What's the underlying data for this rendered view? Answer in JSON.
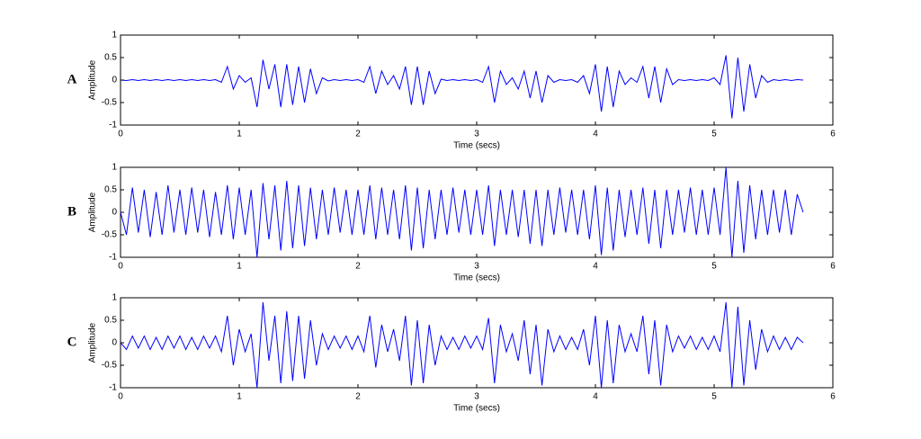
{
  "chart_data": [
    {
      "type": "line",
      "label": "A",
      "ylabel": "Amplitude",
      "xlabel": "Time (secs)",
      "color": "#0000ff",
      "xlim": [
        0,
        6
      ],
      "ylim": [
        -1,
        1
      ],
      "xticks": [
        0,
        1,
        2,
        3,
        4,
        5,
        6
      ],
      "yticks": [
        -1,
        -0.5,
        0,
        0.5,
        1
      ],
      "x": [
        0,
        0.05,
        0.1,
        0.15,
        0.2,
        0.25,
        0.3,
        0.35,
        0.4,
        0.45,
        0.5,
        0.55,
        0.6,
        0.65,
        0.7,
        0.75,
        0.8,
        0.85,
        0.9,
        0.95,
        1,
        1.05,
        1.1,
        1.15,
        1.2,
        1.25,
        1.3,
        1.35,
        1.4,
        1.45,
        1.5,
        1.55,
        1.6,
        1.65,
        1.7,
        1.75,
        1.8,
        1.85,
        1.9,
        1.95,
        2,
        2.05,
        2.1,
        2.15,
        2.2,
        2.25,
        2.3,
        2.35,
        2.4,
        2.45,
        2.5,
        2.55,
        2.6,
        2.65,
        2.7,
        2.75,
        2.8,
        2.85,
        2.9,
        2.95,
        3,
        3.05,
        3.1,
        3.15,
        3.2,
        3.25,
        3.3,
        3.35,
        3.4,
        3.45,
        3.5,
        3.55,
        3.6,
        3.65,
        3.7,
        3.75,
        3.8,
        3.85,
        3.9,
        3.95,
        4,
        4.05,
        4.1,
        4.15,
        4.2,
        4.25,
        4.3,
        4.35,
        4.4,
        4.45,
        4.5,
        4.55,
        4.6,
        4.65,
        4.7,
        4.75,
        4.8,
        4.85,
        4.9,
        4.95,
        5,
        5.05,
        5.1,
        5.15,
        5.2,
        5.25,
        5.3,
        5.35,
        5.4,
        5.45,
        5.5,
        5.55,
        5.6,
        5.65,
        5.7,
        5.75
      ],
      "values": [
        0,
        -0.01,
        0.01,
        -0.01,
        0.01,
        -0.01,
        0.01,
        -0.01,
        0.01,
        -0.01,
        0.01,
        -0.01,
        0.01,
        -0.01,
        0.01,
        -0.01,
        0.01,
        -0.05,
        0.3,
        -0.2,
        0.1,
        -0.05,
        0.05,
        -0.6,
        0.45,
        -0.2,
        0.35,
        -0.6,
        0.35,
        -0.55,
        0.3,
        -0.5,
        0.25,
        -0.3,
        0.05,
        -0.02,
        0.01,
        -0.01,
        0.01,
        -0.01,
        0.01,
        -0.05,
        0.3,
        -0.3,
        0.2,
        -0.1,
        0.1,
        -0.2,
        0.3,
        -0.55,
        0.3,
        -0.55,
        0.2,
        -0.3,
        0.02,
        -0.01,
        0.01,
        -0.01,
        0.01,
        -0.01,
        0.01,
        -0.05,
        0.3,
        -0.5,
        0.2,
        -0.1,
        0.05,
        -0.2,
        0.2,
        -0.4,
        0.2,
        -0.5,
        0.1,
        -0.05,
        0.01,
        -0.01,
        0.01,
        -0.05,
        0.1,
        -0.3,
        0.35,
        -0.7,
        0.3,
        -0.6,
        0.2,
        -0.1,
        0.05,
        -0.05,
        0.3,
        -0.4,
        0.3,
        -0.5,
        0.25,
        -0.1,
        0.01,
        -0.01,
        0.01,
        -0.01,
        0.01,
        -0.01,
        0.05,
        -0.1,
        0.55,
        -0.85,
        0.5,
        -0.7,
        0.35,
        -0.4,
        0.1,
        -0.05,
        0.01,
        -0.01,
        0.01,
        -0.01,
        0.01,
        0
      ]
    },
    {
      "type": "line",
      "label": "B",
      "ylabel": "Amplitude",
      "xlabel": "Time (secs)",
      "color": "#0000ff",
      "xlim": [
        0,
        6
      ],
      "ylim": [
        -1,
        1
      ],
      "xticks": [
        0,
        1,
        2,
        3,
        4,
        5,
        6
      ],
      "yticks": [
        -1,
        -0.5,
        0,
        0.5,
        1
      ],
      "x": [
        0,
        0.05,
        0.1,
        0.15,
        0.2,
        0.25,
        0.3,
        0.35,
        0.4,
        0.45,
        0.5,
        0.55,
        0.6,
        0.65,
        0.7,
        0.75,
        0.8,
        0.85,
        0.9,
        0.95,
        1,
        1.05,
        1.1,
        1.15,
        1.2,
        1.25,
        1.3,
        1.35,
        1.4,
        1.45,
        1.5,
        1.55,
        1.6,
        1.65,
        1.7,
        1.75,
        1.8,
        1.85,
        1.9,
        1.95,
        2,
        2.05,
        2.1,
        2.15,
        2.2,
        2.25,
        2.3,
        2.35,
        2.4,
        2.45,
        2.5,
        2.55,
        2.6,
        2.65,
        2.7,
        2.75,
        2.8,
        2.85,
        2.9,
        2.95,
        3,
        3.05,
        3.1,
        3.15,
        3.2,
        3.25,
        3.3,
        3.35,
        3.4,
        3.45,
        3.5,
        3.55,
        3.6,
        3.65,
        3.7,
        3.75,
        3.8,
        3.85,
        3.9,
        3.95,
        4,
        4.05,
        4.1,
        4.15,
        4.2,
        4.25,
        4.3,
        4.35,
        4.4,
        4.45,
        4.5,
        4.55,
        4.6,
        4.65,
        4.7,
        4.75,
        4.8,
        4.85,
        4.9,
        4.95,
        5,
        5.05,
        5.1,
        5.15,
        5.2,
        5.25,
        5.3,
        5.35,
        5.4,
        5.45,
        5.5,
        5.55,
        5.6,
        5.65,
        5.7,
        5.75
      ],
      "values": [
        0,
        -0.5,
        0.55,
        -0.45,
        0.5,
        -0.55,
        0.45,
        -0.5,
        0.6,
        -0.45,
        0.5,
        -0.5,
        0.55,
        -0.45,
        0.5,
        -0.55,
        0.45,
        -0.5,
        0.6,
        -0.6,
        0.55,
        -0.5,
        0.5,
        -1,
        0.65,
        -0.6,
        0.6,
        -0.85,
        0.7,
        -0.8,
        0.6,
        -0.75,
        0.55,
        -0.6,
        0.5,
        -0.5,
        0.55,
        -0.45,
        0.5,
        -0.5,
        0.5,
        -0.5,
        0.6,
        -0.6,
        0.55,
        -0.5,
        0.5,
        -0.6,
        0.6,
        -0.85,
        0.55,
        -0.8,
        0.5,
        -0.6,
        0.5,
        -0.5,
        0.55,
        -0.45,
        0.5,
        -0.5,
        0.5,
        -0.5,
        0.6,
        -0.75,
        0.5,
        -0.5,
        0.5,
        -0.55,
        0.5,
        -0.7,
        0.5,
        -0.75,
        0.5,
        -0.5,
        0.55,
        -0.45,
        0.5,
        -0.5,
        0.5,
        -0.6,
        0.6,
        -0.95,
        0.55,
        -0.85,
        0.5,
        -0.55,
        0.5,
        -0.5,
        0.55,
        -0.7,
        0.5,
        -0.8,
        0.5,
        -0.5,
        0.5,
        -0.45,
        0.55,
        -0.5,
        0.5,
        -0.5,
        0.55,
        -0.5,
        1,
        -1,
        0.7,
        -0.9,
        0.6,
        -0.6,
        0.5,
        -0.5,
        0.5,
        -0.45,
        0.5,
        -0.5,
        0.4,
        0
      ]
    },
    {
      "type": "line",
      "label": "C",
      "ylabel": "Amplitude",
      "xlabel": "Time (secs)",
      "color": "#0000ff",
      "xlim": [
        0,
        6
      ],
      "ylim": [
        -1,
        1
      ],
      "xticks": [
        0,
        1,
        2,
        3,
        4,
        5,
        6
      ],
      "yticks": [
        -1,
        -0.5,
        0,
        0.5,
        1
      ],
      "x": [
        0,
        0.05,
        0.1,
        0.15,
        0.2,
        0.25,
        0.3,
        0.35,
        0.4,
        0.45,
        0.5,
        0.55,
        0.6,
        0.65,
        0.7,
        0.75,
        0.8,
        0.85,
        0.9,
        0.95,
        1,
        1.05,
        1.1,
        1.15,
        1.2,
        1.25,
        1.3,
        1.35,
        1.4,
        1.45,
        1.5,
        1.55,
        1.6,
        1.65,
        1.7,
        1.75,
        1.8,
        1.85,
        1.9,
        1.95,
        2,
        2.05,
        2.1,
        2.15,
        2.2,
        2.25,
        2.3,
        2.35,
        2.4,
        2.45,
        2.5,
        2.55,
        2.6,
        2.65,
        2.7,
        2.75,
        2.8,
        2.85,
        2.9,
        2.95,
        3,
        3.05,
        3.1,
        3.15,
        3.2,
        3.25,
        3.3,
        3.35,
        3.4,
        3.45,
        3.5,
        3.55,
        3.6,
        3.65,
        3.7,
        3.75,
        3.8,
        3.85,
        3.9,
        3.95,
        4,
        4.05,
        4.1,
        4.15,
        4.2,
        4.25,
        4.3,
        4.35,
        4.4,
        4.45,
        4.5,
        4.55,
        4.6,
        4.65,
        4.7,
        4.75,
        4.8,
        4.85,
        4.9,
        4.95,
        5,
        5.05,
        5.1,
        5.15,
        5.2,
        5.25,
        5.3,
        5.35,
        5.4,
        5.45,
        5.5,
        5.55,
        5.6,
        5.65,
        5.7,
        5.75
      ],
      "values": [
        0,
        -0.15,
        0.15,
        -0.12,
        0.15,
        -0.15,
        0.12,
        -0.15,
        0.15,
        -0.12,
        0.15,
        -0.15,
        0.12,
        -0.15,
        0.15,
        -0.12,
        0.15,
        -0.2,
        0.6,
        -0.5,
        0.3,
        -0.2,
        0.2,
        -1,
        0.9,
        -0.4,
        0.6,
        -0.9,
        0.7,
        -0.85,
        0.6,
        -0.8,
        0.5,
        -0.5,
        0.2,
        -0.15,
        0.15,
        -0.12,
        0.15,
        -0.15,
        0.15,
        -0.2,
        0.6,
        -0.55,
        0.4,
        -0.2,
        0.3,
        -0.4,
        0.6,
        -0.95,
        0.5,
        -0.9,
        0.4,
        -0.5,
        0.15,
        -0.15,
        0.12,
        -0.15,
        0.15,
        -0.12,
        0.15,
        -0.15,
        0.55,
        -0.9,
        0.4,
        -0.2,
        0.2,
        -0.4,
        0.5,
        -0.7,
        0.4,
        -0.95,
        0.3,
        -0.2,
        0.15,
        -0.15,
        0.12,
        -0.15,
        0.3,
        -0.5,
        0.6,
        -1,
        0.5,
        -0.9,
        0.4,
        -0.2,
        0.2,
        -0.2,
        0.6,
        -0.7,
        0.5,
        -0.95,
        0.4,
        -0.2,
        0.15,
        -0.12,
        0.15,
        -0.15,
        0.12,
        -0.15,
        0.15,
        -0.2,
        0.9,
        -1,
        0.8,
        -0.95,
        0.5,
        -0.6,
        0.3,
        -0.2,
        0.15,
        -0.15,
        0.12,
        -0.15,
        0.12,
        0
      ]
    }
  ]
}
